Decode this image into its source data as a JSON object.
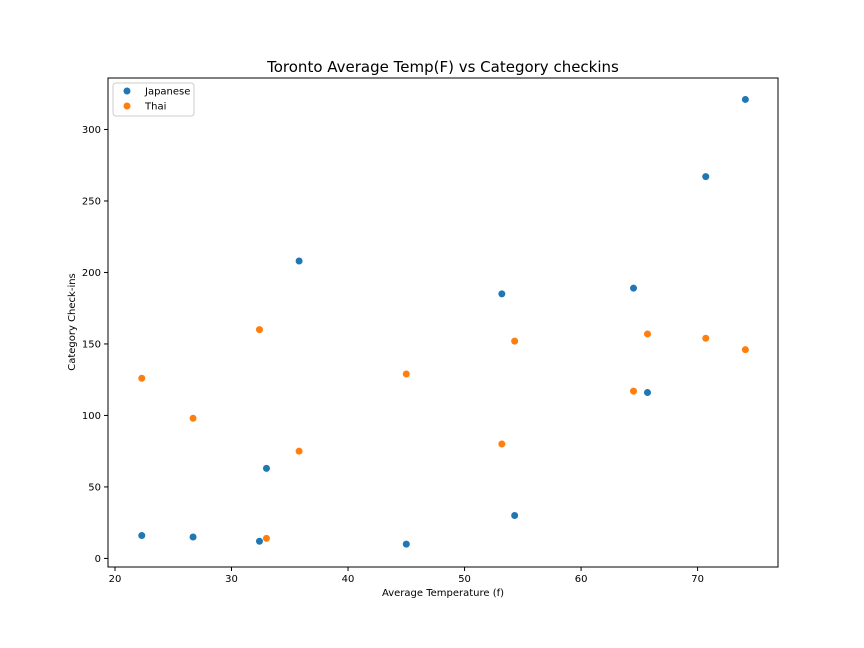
{
  "chart_data": {
    "type": "scatter",
    "title": "Toronto Average Temp(F) vs Category checkins",
    "xlabel": "Average Temperature (f)",
    "ylabel": "Category Check-ins",
    "xlim": [
      19.4,
      76.9
    ],
    "ylim": [
      -6,
      336
    ],
    "xticks": [
      20,
      30,
      40,
      50,
      60,
      70
    ],
    "yticks": [
      0,
      50,
      100,
      150,
      200,
      250,
      300
    ],
    "grid": false,
    "legend_position": "top-left",
    "series": [
      {
        "name": "Japanese",
        "color": "#1f77b4",
        "x": [
          22.3,
          26.7,
          32.4,
          33.0,
          35.8,
          45.0,
          53.2,
          54.3,
          64.5,
          65.7,
          70.7,
          74.1
        ],
        "y": [
          16,
          15,
          12,
          63,
          208,
          10,
          185,
          30,
          189,
          116,
          267,
          321
        ]
      },
      {
        "name": "Thai",
        "color": "#ff7f0e",
        "x": [
          22.3,
          26.7,
          32.4,
          33.0,
          35.8,
          45.0,
          53.2,
          54.3,
          64.5,
          65.7,
          70.7,
          74.1
        ],
        "y": [
          126,
          98,
          160,
          14,
          75,
          129,
          80,
          152,
          117,
          157,
          154,
          146
        ]
      }
    ]
  }
}
